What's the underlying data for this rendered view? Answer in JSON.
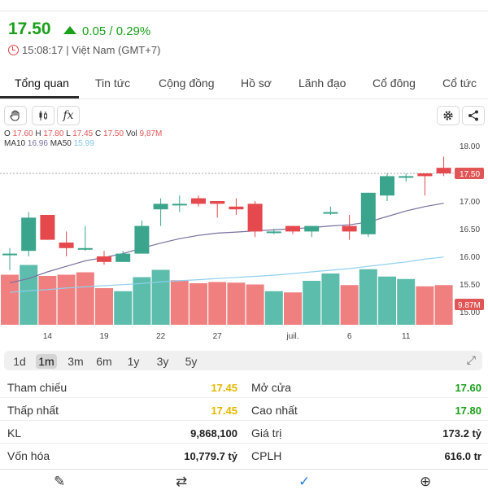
{
  "quote": {
    "price": "17.50",
    "change": "0.05 / 0.29%",
    "time": "15:08:17 | Việt Nam (GMT+7)"
  },
  "tabs": [
    {
      "label": "Tổng quan"
    },
    {
      "label": "Tin tức"
    },
    {
      "label": "Cộng đồng"
    },
    {
      "label": "Hồ sơ"
    },
    {
      "label": "Lãnh đạo"
    },
    {
      "label": "Cổ đông"
    },
    {
      "label": "Cổ tức"
    }
  ],
  "toolbar": {
    "fx_label": "fx"
  },
  "legend": {
    "o_label": "O",
    "o": "17.60",
    "h_label": "H",
    "h": "17.80",
    "l_label": "L",
    "l": "17.45",
    "c_label": "C",
    "c": "17.50",
    "vol_label": "Vol",
    "vol": "9,87M",
    "ma10_label": "MA10",
    "ma10": "16.96",
    "ma50_label": "MA50",
    "ma50": "15.99"
  },
  "colors": {
    "up": "#5dbdad",
    "down": "#f08080",
    "down_body": "#e5484d",
    "up_body": "#3aa58c",
    "ma10": "#7a6f9e",
    "ma50": "#8fd0f0",
    "price_label_bg": "#e05656"
  },
  "chart_data": {
    "type": "candlestick",
    "x_ticks": [
      "14",
      "19",
      "22",
      "27",
      "juil.",
      "6",
      "11"
    ],
    "y_ticks": [
      "18.00",
      "17.50",
      "17.00",
      "16.50",
      "16.00",
      "15.50",
      "15.00"
    ],
    "ylim": [
      14.9,
      18.1
    ],
    "last_price_label": "17.50",
    "volume_label": "9.87M",
    "candles": [
      {
        "o": 16.05,
        "h": 16.15,
        "l": 15.75,
        "c": 16.05
      },
      {
        "o": 16.1,
        "h": 16.8,
        "l": 16.0,
        "c": 16.7
      },
      {
        "o": 16.75,
        "h": 16.75,
        "l": 16.3,
        "c": 16.3
      },
      {
        "o": 16.25,
        "h": 16.45,
        "l": 16.0,
        "c": 16.15
      },
      {
        "o": 16.15,
        "h": 16.55,
        "l": 16.1,
        "c": 16.15
      },
      {
        "o": 16.0,
        "h": 16.1,
        "l": 15.85,
        "c": 15.9
      },
      {
        "o": 15.9,
        "h": 16.1,
        "l": 15.9,
        "c": 16.05
      },
      {
        "o": 16.05,
        "h": 16.65,
        "l": 16.05,
        "c": 16.55
      },
      {
        "o": 16.85,
        "h": 17.05,
        "l": 16.55,
        "c": 16.95
      },
      {
        "o": 16.95,
        "h": 17.1,
        "l": 16.8,
        "c": 16.95
      },
      {
        "o": 17.05,
        "h": 17.1,
        "l": 16.9,
        "c": 16.95
      },
      {
        "o": 17.0,
        "h": 17.0,
        "l": 16.7,
        "c": 16.95
      },
      {
        "o": 16.9,
        "h": 17.05,
        "l": 16.75,
        "c": 16.85
      },
      {
        "o": 16.95,
        "h": 17.0,
        "l": 16.35,
        "c": 16.45
      },
      {
        "o": 16.45,
        "h": 16.5,
        "l": 16.4,
        "c": 16.45
      },
      {
        "o": 16.55,
        "h": 16.55,
        "l": 16.4,
        "c": 16.45
      },
      {
        "o": 16.45,
        "h": 16.55,
        "l": 16.35,
        "c": 16.55
      },
      {
        "o": 16.8,
        "h": 16.9,
        "l": 16.75,
        "c": 16.8
      },
      {
        "o": 16.55,
        "h": 16.75,
        "l": 16.3,
        "c": 16.45
      },
      {
        "o": 16.4,
        "h": 17.15,
        "l": 16.35,
        "c": 17.15
      },
      {
        "o": 17.1,
        "h": 17.5,
        "l": 17.0,
        "c": 17.45
      },
      {
        "o": 17.45,
        "h": 17.5,
        "l": 17.35,
        "c": 17.45
      },
      {
        "o": 17.5,
        "h": 17.5,
        "l": 17.1,
        "c": 17.45
      },
      {
        "o": 17.6,
        "h": 17.8,
        "l": 17.45,
        "c": 17.5
      }
    ],
    "volumes": [
      {
        "v": 0.82,
        "up": false
      },
      {
        "v": 0.98,
        "up": true
      },
      {
        "v": 0.8,
        "up": false
      },
      {
        "v": 0.82,
        "up": false
      },
      {
        "v": 0.86,
        "up": false
      },
      {
        "v": 0.6,
        "up": false
      },
      {
        "v": 0.55,
        "up": true
      },
      {
        "v": 0.78,
        "up": true
      },
      {
        "v": 0.9,
        "up": true
      },
      {
        "v": 0.73,
        "up": false
      },
      {
        "v": 0.68,
        "up": false
      },
      {
        "v": 0.7,
        "up": false
      },
      {
        "v": 0.69,
        "up": false
      },
      {
        "v": 0.66,
        "up": false
      },
      {
        "v": 0.55,
        "up": true
      },
      {
        "v": 0.53,
        "up": false
      },
      {
        "v": 0.72,
        "up": true
      },
      {
        "v": 0.84,
        "up": true
      },
      {
        "v": 0.65,
        "up": false
      },
      {
        "v": 0.91,
        "up": true
      },
      {
        "v": 0.79,
        "up": true
      },
      {
        "v": 0.75,
        "up": true
      },
      {
        "v": 0.63,
        "up": false
      },
      {
        "v": 0.65,
        "up": false
      }
    ],
    "ma10": [
      15.52,
      15.6,
      15.72,
      15.82,
      15.92,
      15.98,
      16.05,
      16.15,
      16.24,
      16.32,
      16.38,
      16.42,
      16.44,
      16.46,
      16.48,
      16.5,
      16.52,
      16.55,
      16.57,
      16.62,
      16.72,
      16.82,
      16.9,
      16.96
    ],
    "ma50": [
      15.35,
      15.38,
      15.4,
      15.43,
      15.45,
      15.47,
      15.49,
      15.51,
      15.54,
      15.56,
      15.58,
      15.6,
      15.62,
      15.64,
      15.66,
      15.69,
      15.72,
      15.75,
      15.78,
      15.82,
      15.86,
      15.9,
      15.95,
      15.99
    ]
  },
  "ranges": [
    {
      "label": "1d"
    },
    {
      "label": "1m"
    },
    {
      "label": "3m"
    },
    {
      "label": "6m"
    },
    {
      "label": "1y"
    },
    {
      "label": "3y"
    },
    {
      "label": "5y"
    }
  ],
  "stats": {
    "tham_chieu_label": "Tham chiếu",
    "tham_chieu": "17.45",
    "mo_cua_label": "Mở cửa",
    "mo_cua": "17.60",
    "thap_nhat_label": "Thấp nhất",
    "thap_nhat": "17.45",
    "cao_nhat_label": "Cao nhất",
    "cao_nhat": "17.80",
    "kl_label": "KL",
    "kl": "9,868,100",
    "gia_tri_label": "Giá trị",
    "gia_tri": "173.2 tỷ",
    "von_hoa_label": "Vốn hóa",
    "von_hoa": "10,779.7 tỷ",
    "cplh_label": "CPLH",
    "cplh": "616.0 tr"
  }
}
